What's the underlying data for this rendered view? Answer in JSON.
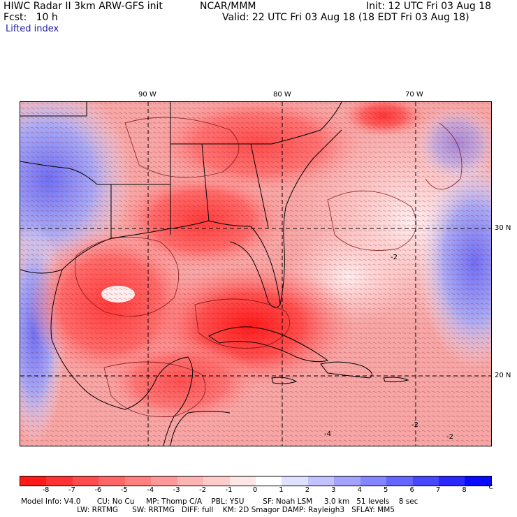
{
  "header": {
    "model_line": "HIWC Radar II 3km ARW-GFS init",
    "org": "NCAR/MMM",
    "init": "Init: 12 UTC Fri 03 Aug 18",
    "fcst": "Fcst:   10 h",
    "valid": "Valid: 22 UTC Fri 03 Aug 18 (18 EDT Fri 03 Aug 18)",
    "field": "Lifted index"
  },
  "map": {
    "lon_labels": [
      "90 W",
      "80 W",
      "70 W"
    ],
    "lat_labels": [
      "30 N",
      "20 N"
    ],
    "contour_labels": [
      "-2",
      "-2",
      "-4",
      "-2"
    ]
  },
  "colorbar": {
    "ticks": [
      "-8",
      "-7",
      "-6",
      "-5",
      "-4",
      "-3",
      "-2",
      "-1",
      "0",
      "1",
      "2",
      "3",
      "4",
      "5",
      "6",
      "7",
      "8"
    ],
    "unit": "°C",
    "colors": [
      "#ff1a1a",
      "#ff3333",
      "#ff4d4d",
      "#ff6666",
      "#ff8080",
      "#ff9999",
      "#ffb3b3",
      "#ffcccc",
      "#ffe6e6",
      "#ffffff",
      "#e0e0ff",
      "#c2c2ff",
      "#a3a3ff",
      "#8585ff",
      "#6666ff",
      "#4747ff",
      "#2929ff",
      "#0a0aff"
    ]
  },
  "info": {
    "line1": "Model Info: V4.0       CU: No Cu     MP: Thomp C/A    PBL: YSU        SF: Noah LSM     3.0 km   51 levels    8 sec",
    "line2": "                        LW: RRTMG      SW: RRTMG   DIFF: full    KM: 2D Smagor DAMP: Rayleigh3   SFLAY: MM5"
  }
}
